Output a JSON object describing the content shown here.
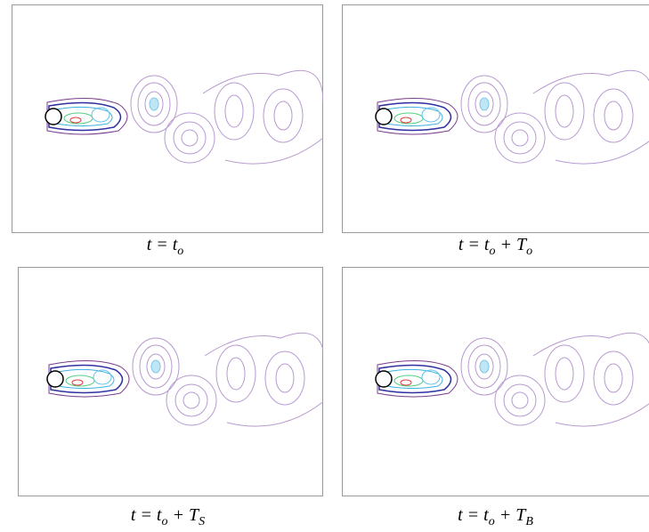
{
  "panels": [
    {
      "caption": [
        {
          "text": "t = t"
        },
        {
          "sub": "o"
        }
      ]
    },
    {
      "caption": [
        {
          "text": "t = t"
        },
        {
          "sub": "o"
        },
        {
          "text": " + T"
        },
        {
          "sub": "o"
        }
      ]
    },
    {
      "caption": [
        {
          "text": "t = t"
        },
        {
          "sub": "o"
        },
        {
          "text": " + T"
        },
        {
          "sub": "S"
        }
      ]
    },
    {
      "caption": [
        {
          "text": "t = t"
        },
        {
          "sub": "o"
        },
        {
          "text": " + T"
        },
        {
          "sub": "B"
        }
      ]
    }
  ]
}
